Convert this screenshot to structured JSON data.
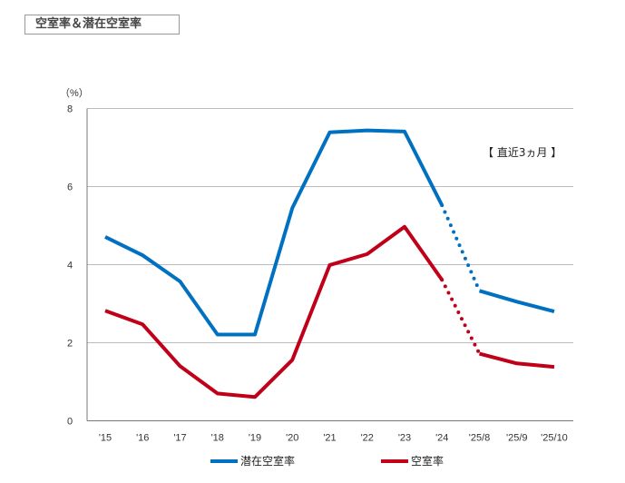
{
  "header": {
    "title": "空室率＆潜在空室率"
  },
  "chart_data": {
    "type": "line",
    "title": "",
    "ylabel": "（%）",
    "ylim": [
      0,
      8
    ],
    "yticks": [
      "0",
      "2",
      "4",
      "6",
      "8"
    ],
    "grid": true,
    "categories": [
      "'15",
      "'16",
      "'17",
      "'18",
      "'19",
      "'20",
      "'21",
      "'22",
      "'23",
      "'24",
      "'25/8",
      "'25/9",
      "'25/10"
    ],
    "annotation": "【 直近3ヵ月 】",
    "dotted_segment": [
      "'24",
      "'25/8"
    ],
    "legend_position": "bottom",
    "series": [
      {
        "name": "潜在空室率",
        "color": "#0070C0",
        "values": [
          4.71,
          4.24,
          3.57,
          2.21,
          2.21,
          5.45,
          7.39,
          7.44,
          7.41,
          5.52,
          3.33,
          3.05,
          2.8
        ]
      },
      {
        "name": "空室率",
        "color": "#C00018",
        "values": [
          2.82,
          2.47,
          1.4,
          0.7,
          0.61,
          1.56,
          3.99,
          4.27,
          4.97,
          3.61,
          1.72,
          1.47,
          1.38
        ]
      }
    ]
  }
}
